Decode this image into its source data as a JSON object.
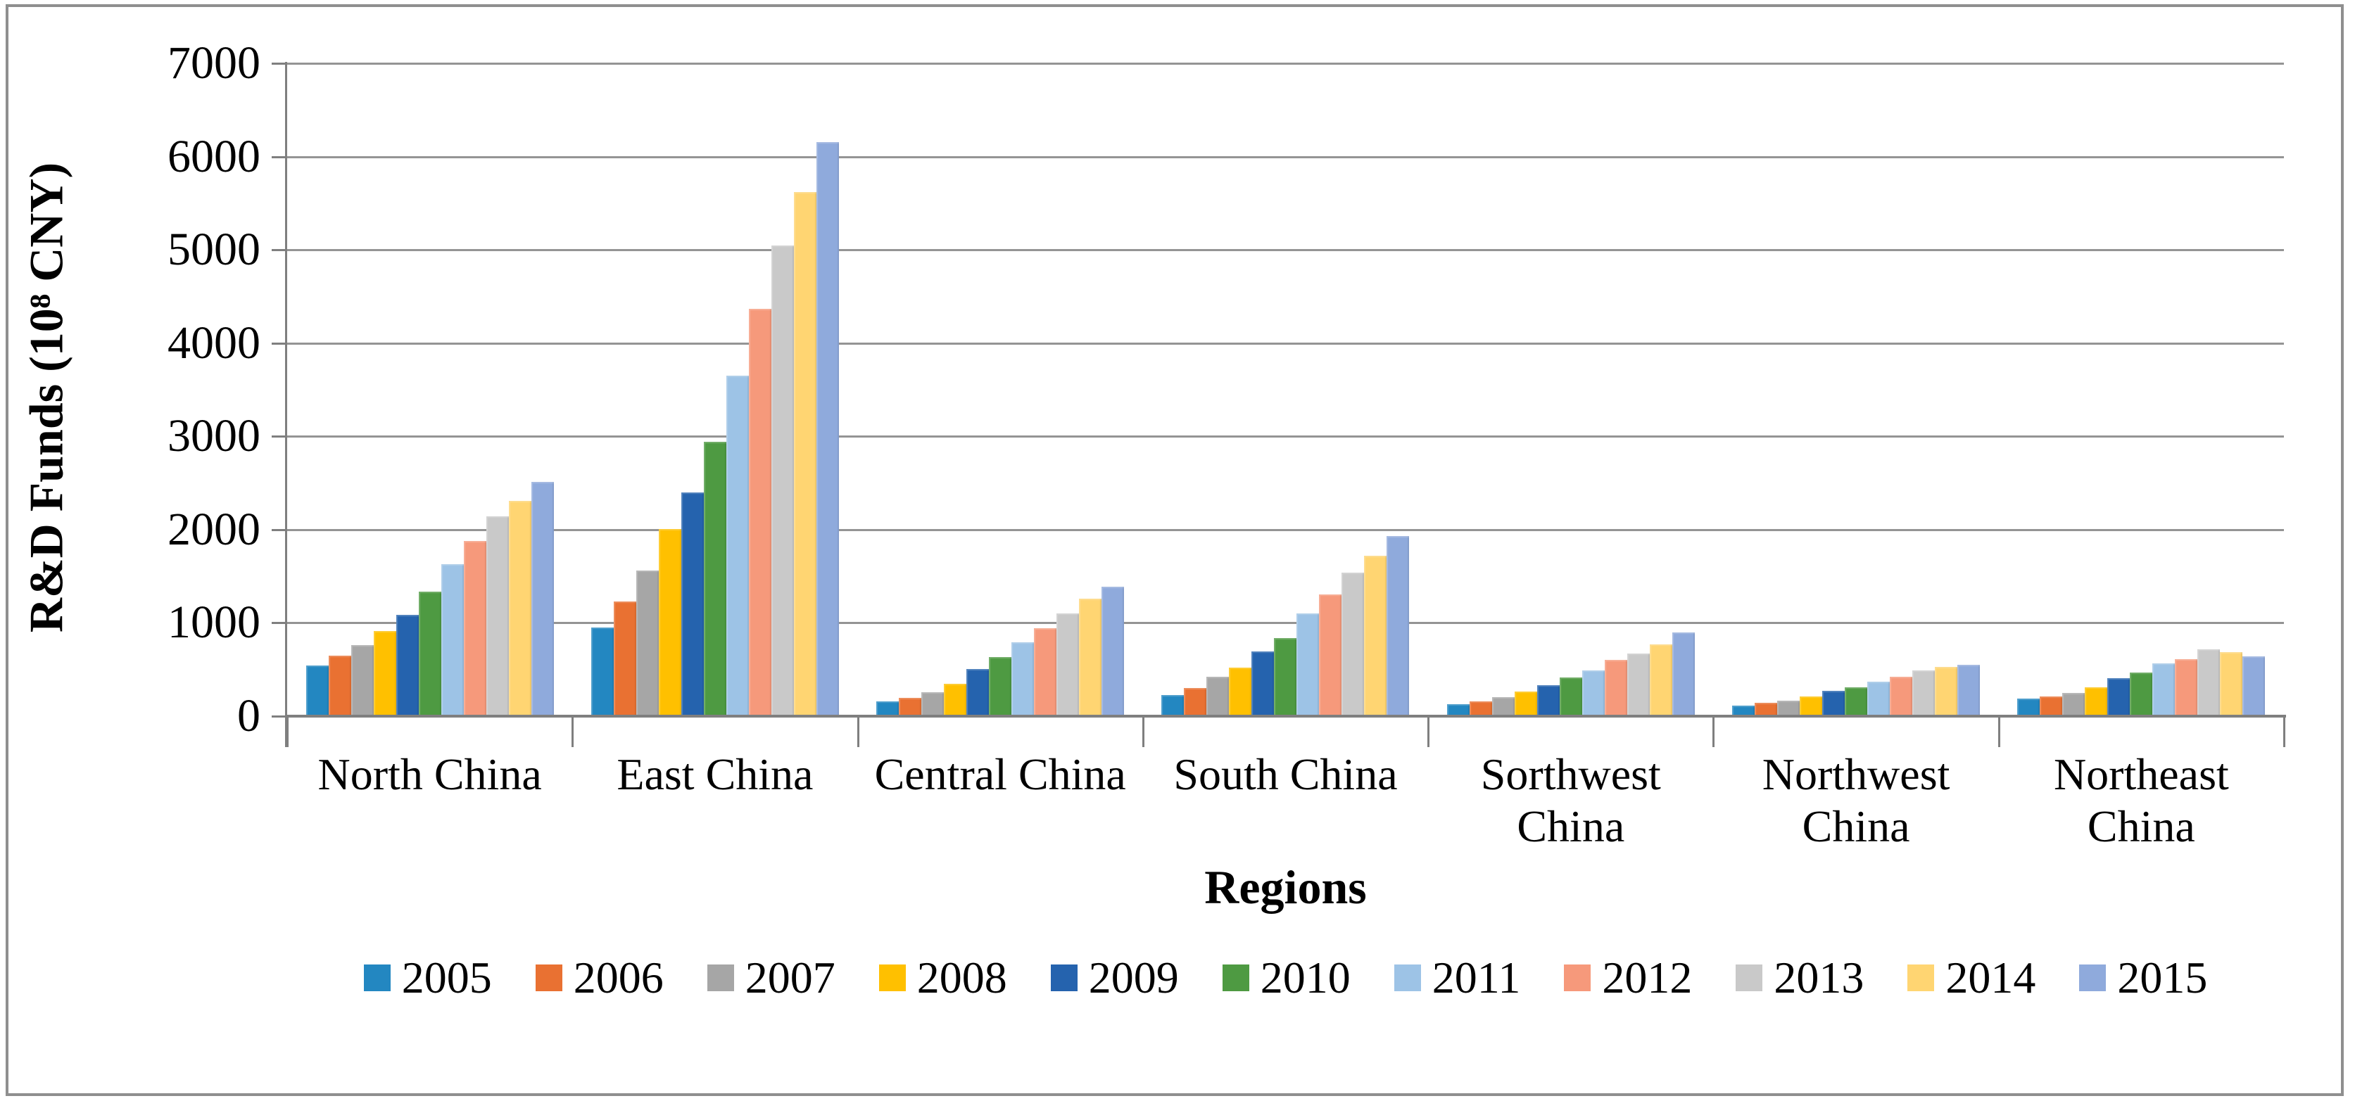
{
  "figure": {
    "y_axis_title": "R&D Funds (10⁸ CNY)",
    "x_axis_title": "Regions"
  },
  "chart_data": {
    "type": "bar",
    "title": "",
    "xlabel": "Regions",
    "ylabel": "R&D Funds (10⁸ CNY)",
    "ylim": [
      0,
      7000
    ],
    "y_tick_step": 1000,
    "y_ticks": [
      0,
      1000,
      2000,
      3000,
      4000,
      5000,
      6000,
      7000
    ],
    "grid": true,
    "legend_position": "bottom",
    "categories": [
      "North China",
      "East China",
      "Central China",
      "South China",
      "Sorthwest\nChina",
      "Northwest\nChina",
      "Northeast\nChina"
    ],
    "series": [
      {
        "name": "2005",
        "color": "#2387C1",
        "values": [
          540,
          950,
          160,
          225,
          130,
          115,
          190
        ]
      },
      {
        "name": "2006",
        "color": "#E97132",
        "values": [
          650,
          1230,
          200,
          305,
          160,
          145,
          210
        ]
      },
      {
        "name": "2007",
        "color": "#A6A6A6",
        "values": [
          765,
          1560,
          255,
          420,
          205,
          165,
          250
        ]
      },
      {
        "name": "2008",
        "color": "#FFC000",
        "values": [
          910,
          2005,
          350,
          520,
          265,
          210,
          310
        ]
      },
      {
        "name": "2009",
        "color": "#2563AE",
        "values": [
          1085,
          2400,
          505,
          695,
          335,
          270,
          405
        ]
      },
      {
        "name": "2010",
        "color": "#4E9A42",
        "values": [
          1335,
          2940,
          635,
          835,
          415,
          310,
          465
        ]
      },
      {
        "name": "2011",
        "color": "#9DC3E6",
        "values": [
          1630,
          3650,
          790,
          1105,
          490,
          370,
          565
        ]
      },
      {
        "name": "2012",
        "color": "#F6997B",
        "values": [
          1880,
          4370,
          940,
          1305,
          600,
          420,
          610
        ]
      },
      {
        "name": "2013",
        "color": "#C9C9C9",
        "values": [
          2145,
          5050,
          1100,
          1540,
          675,
          490,
          715
        ]
      },
      {
        "name": "2014",
        "color": "#FFD572",
        "values": [
          2310,
          5620,
          1260,
          1720,
          770,
          530,
          690
        ]
      },
      {
        "name": "2015",
        "color": "#8FAADC",
        "values": [
          2510,
          6155,
          1390,
          1930,
          900,
          550,
          645
        ]
      }
    ]
  }
}
